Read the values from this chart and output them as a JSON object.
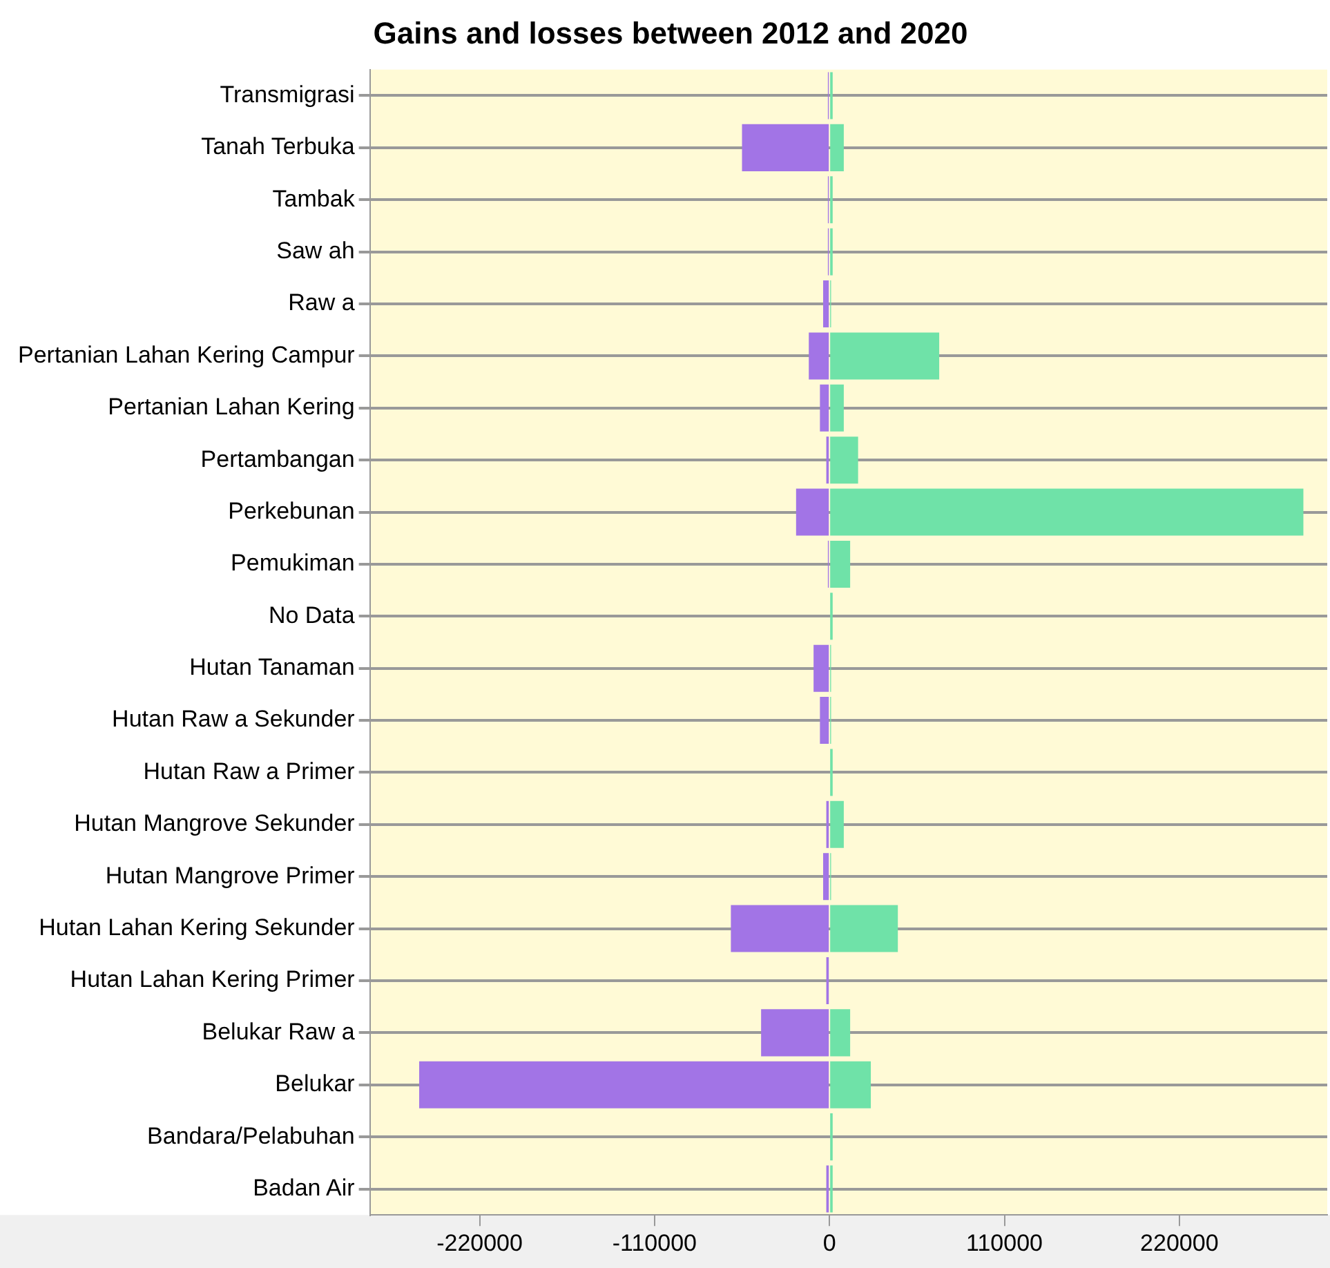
{
  "chart_data": {
    "type": "bar",
    "title": "Gains and losses between 2012 and 2020",
    "orientation": "horizontal",
    "stacked": true,
    "grid": "y",
    "legend": false,
    "categories": [
      "Transmigrasi",
      "Tanah Terbuka",
      "Tambak",
      "Saw ah",
      "Raw a",
      "Pertanian Lahan Kering Campur",
      "Pertanian Lahan Kering",
      "Pertambangan",
      "Perkebunan",
      "Pemukiman",
      "No Data",
      "Hutan Tanaman",
      "Hutan Raw a Sekunder",
      "Hutan Raw a Primer",
      "Hutan Mangrove Sekunder",
      "Hutan Mangrove Primer",
      "Hutan Lahan Kering Sekunder",
      "Hutan Lahan Kering Primer",
      "Belukar Raw a",
      "Belukar",
      "Bandara/Pelabuhan",
      "Badan Air"
    ],
    "series": [
      {
        "color": "#a274e6",
        "values": [
          -1000,
          -55000,
          -1000,
          -1000,
          -4000,
          -13000,
          -6000,
          -2000,
          -21000,
          -1000,
          0,
          -10000,
          -6000,
          0,
          -2000,
          -4000,
          -62000,
          -2000,
          -43000,
          -258000,
          0,
          -2000
        ]
      },
      {
        "color": "#6fe2a8",
        "values": [
          2000,
          9000,
          2000,
          2000,
          1000,
          69000,
          9000,
          18000,
          298000,
          13000,
          2000,
          1000,
          1000,
          2000,
          9000,
          1000,
          43000,
          0,
          13000,
          26000,
          2000,
          2000
        ]
      }
    ],
    "xlim": [
      -289000,
      313000
    ],
    "xticks": [
      -220000,
      -110000,
      0,
      110000,
      220000
    ]
  }
}
